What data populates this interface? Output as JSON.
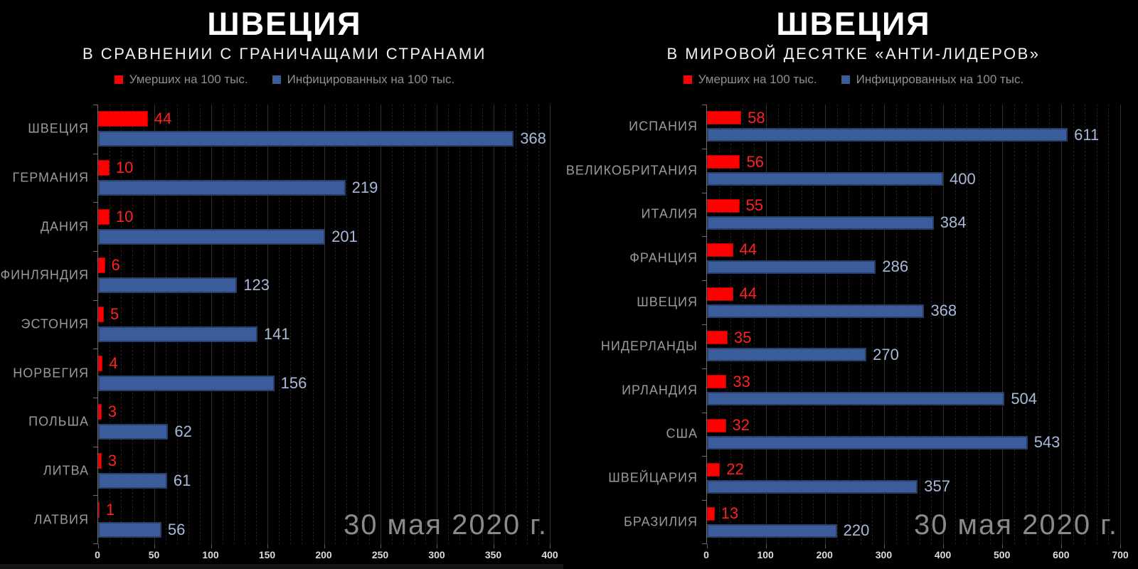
{
  "date_label": "30 мая 2020 г.",
  "legend": {
    "deaths_label": "Умерших на 100 тыс.",
    "infected_label": "Инфицированных на 100 тыс."
  },
  "colors": {
    "background": "#000000",
    "deaths": "#ff0000",
    "deaths_border": "#b40000",
    "deaths_label": "#ff2020",
    "infected": "#3a5c9b",
    "infected_border": "#273f6b",
    "infected_label": "#a8badb",
    "country_label": "#9a9a9a",
    "axis_label": "#dcdcdc",
    "watermark": "#8a8a8a"
  },
  "chart_data": [
    {
      "type": "bar",
      "orientation": "horizontal",
      "title": "ШВЕЦИЯ",
      "subtitle": "В СРАВНЕНИИ С ГРАНИЧАЩАМИ СТРАНАМИ",
      "legend_position": "top",
      "grid": true,
      "annotation": "30 мая 2020 г.",
      "xlim": [
        0,
        400
      ],
      "x_major_step": 50,
      "x_minor_step": 10,
      "x_ticks": [
        0,
        50,
        100,
        150,
        200,
        250,
        300,
        350,
        400
      ],
      "categories": [
        "ШВЕЦИЯ",
        "ГЕРМАНИЯ",
        "ДАНИЯ",
        "ФИНЛЯНДИЯ",
        "ЭСТОНИЯ",
        "НОРВЕГИЯ",
        "ПОЛЬША",
        "ЛИТВА",
        "ЛАТВИЯ"
      ],
      "series": [
        {
          "key": "deaths",
          "name": "Умерших на 100 тыс.",
          "values": [
            44,
            10,
            10,
            6,
            5,
            4,
            3,
            3,
            1
          ]
        },
        {
          "key": "infected",
          "name": "Инфицированных на 100 тыс.",
          "values": [
            368,
            219,
            201,
            123,
            141,
            156,
            62,
            61,
            56
          ]
        }
      ]
    },
    {
      "type": "bar",
      "orientation": "horizontal",
      "title": "ШВЕЦИЯ",
      "subtitle": "В МИРОВОЙ ДЕСЯТКЕ «АНТИ-ЛИДЕРОВ»",
      "legend_position": "top",
      "grid": true,
      "annotation": "30 мая 2020 г.",
      "xlim": [
        0,
        700
      ],
      "x_major_step": 100,
      "x_minor_step": 20,
      "x_ticks": [
        0,
        100,
        200,
        300,
        400,
        500,
        600,
        700
      ],
      "categories": [
        "ИСПАНИЯ",
        "ВЕЛИКОБРИТАНИЯ",
        "ИТАЛИЯ",
        "ФРАНЦИЯ",
        "ШВЕЦИЯ",
        "НИДЕРЛАНДЫ",
        "ИРЛАНДИЯ",
        "США",
        "ШВЕЙЦАРИЯ",
        "БРАЗИЛИЯ"
      ],
      "series": [
        {
          "key": "deaths",
          "name": "Умерших на 100 тыс.",
          "values": [
            58,
            56,
            55,
            44,
            44,
            35,
            33,
            32,
            22,
            13
          ]
        },
        {
          "key": "infected",
          "name": "Инфицированных на 100 тыс.",
          "values": [
            611,
            400,
            384,
            286,
            368,
            270,
            504,
            543,
            357,
            220
          ]
        }
      ]
    }
  ]
}
